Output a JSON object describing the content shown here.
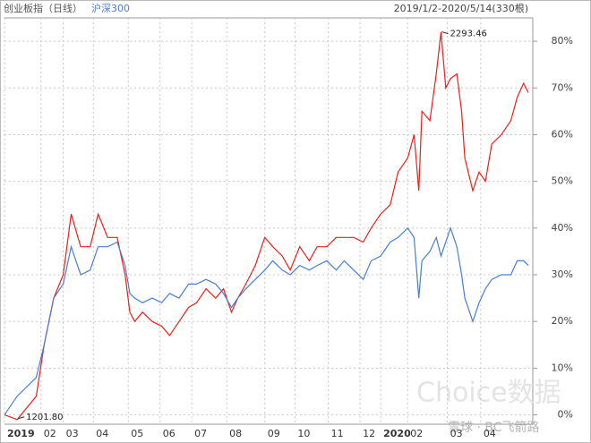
{
  "chart_data": {
    "type": "line",
    "subtitle": "2019/1/2-2020/5/14(330根)",
    "x": [
      0,
      8,
      20,
      25,
      31,
      37,
      42,
      48,
      54,
      59,
      65,
      71,
      76,
      79,
      82,
      87,
      93,
      99,
      104,
      110,
      116,
      121,
      127,
      133,
      138,
      143,
      147,
      152,
      158,
      164,
      169,
      175,
      180,
      186,
      192,
      197,
      203,
      209,
      214,
      220,
      226,
      231,
      237,
      243,
      248,
      254,
      258,
      261,
      263,
      268,
      272,
      275,
      278,
      281,
      285,
      288,
      290,
      295,
      299,
      303,
      307,
      313,
      319,
      323,
      327,
      330
    ],
    "series": [
      {
        "name": "创业板指（日线）",
        "color": "#e8201c",
        "values": [
          0,
          -1,
          4,
          15,
          25,
          30,
          43,
          36,
          36,
          43,
          38,
          38,
          30,
          22,
          20,
          22,
          20,
          19,
          17,
          20,
          23,
          24,
          27,
          25,
          27,
          22,
          25,
          28,
          32,
          38,
          36,
          34,
          31,
          36,
          33,
          36,
          36,
          38,
          38,
          38,
          37,
          40,
          43,
          45,
          52,
          55,
          60,
          48,
          65,
          63,
          73,
          82,
          70,
          72,
          73,
          65,
          55,
          48,
          52,
          50,
          58,
          60,
          63,
          68,
          71,
          69
        ]
      },
      {
        "name": "沪深300",
        "color": "#4a7fd0",
        "values": [
          0,
          4,
          8,
          15,
          25,
          28,
          36,
          30,
          31,
          36,
          36,
          37,
          32,
          26,
          25,
          24,
          25,
          24,
          26,
          25,
          28,
          28,
          29,
          28,
          26,
          23,
          25,
          27,
          29,
          31,
          33,
          31,
          30,
          32,
          31,
          32,
          33,
          31,
          33,
          31,
          29,
          33,
          34,
          37,
          38,
          40,
          38,
          25,
          33,
          35,
          38,
          34,
          37,
          40,
          36,
          30,
          25,
          20,
          24,
          27,
          29,
          30,
          30,
          33,
          33,
          32
        ]
      }
    ],
    "annotations": [
      {
        "text": "2293.46",
        "x": 275,
        "y": 82
      },
      {
        "text": "1201.80",
        "x": 8,
        "y": -1
      }
    ],
    "watermark": "Choice数据",
    "credit": "雪球 · BC飞箭路",
    "xlim": [
      0,
      330
    ],
    "xticks": [
      {
        "value": 0,
        "label": "2019"
      },
      {
        "value": 23,
        "label": "02"
      },
      {
        "value": 37,
        "label": "03"
      },
      {
        "value": 56,
        "label": "04"
      },
      {
        "value": 78,
        "label": "05"
      },
      {
        "value": 98,
        "label": "06"
      },
      {
        "value": 118,
        "label": "07"
      },
      {
        "value": 140,
        "label": "08"
      },
      {
        "value": 164,
        "label": "09"
      },
      {
        "value": 183,
        "label": "10"
      },
      {
        "value": 204,
        "label": "11"
      },
      {
        "value": 224,
        "label": "12"
      },
      {
        "value": 237,
        "label": "2020"
      },
      {
        "value": 254,
        "label": "02"
      },
      {
        "value": 279,
        "label": "03"
      },
      {
        "value": 300,
        "label": "04"
      }
    ],
    "ylim": [
      -2,
      85
    ],
    "yticks": [
      {
        "value": 0,
        "label": "0%"
      },
      {
        "value": 10,
        "label": "10%"
      },
      {
        "value": 20,
        "label": "20%"
      },
      {
        "value": 30,
        "label": "30%"
      },
      {
        "value": 40,
        "label": "40%"
      },
      {
        "value": 50,
        "label": "50%"
      },
      {
        "value": 60,
        "label": "60%"
      },
      {
        "value": 70,
        "label": "70%"
      },
      {
        "value": 80,
        "label": "80%"
      }
    ],
    "grid": true
  }
}
